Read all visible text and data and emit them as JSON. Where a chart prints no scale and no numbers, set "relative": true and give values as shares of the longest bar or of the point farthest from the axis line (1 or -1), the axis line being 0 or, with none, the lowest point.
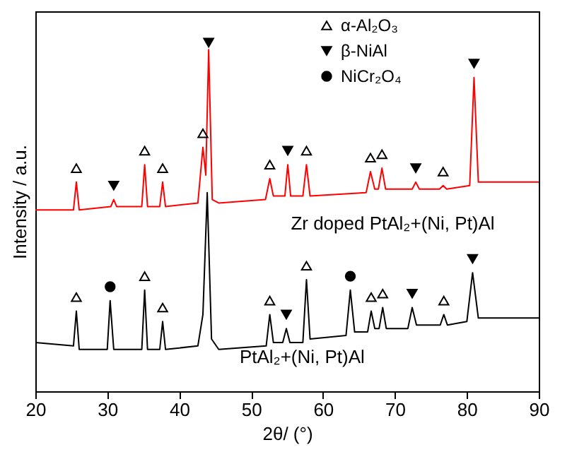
{
  "chart_data": {
    "type": "line",
    "relative": true,
    "xlabel": "2θ/ (°)",
    "ylabel": "Intensity / a.u.",
    "xlim": [
      20,
      90
    ],
    "xticks": [
      20,
      30,
      40,
      50,
      60,
      70,
      80,
      90
    ],
    "grid": false,
    "legend": "top right",
    "marker": "none",
    "line_style": "solid",
    "series": [
      {
        "color": "#ff0000",
        "x": [
          20,
          25.3,
          25.7,
          26.1,
          30.5,
          30.9,
          31.3,
          34.8,
          35.2,
          35.6,
          37.3,
          37.7,
          38.1,
          42.6,
          43.3,
          43.7,
          44.1,
          44.6,
          45.5,
          52.0,
          52.6,
          53.1,
          54.7,
          55.1,
          55.5,
          57.2,
          57.7,
          58.2,
          66.0,
          66.6,
          67.2,
          67.7,
          68.2,
          68.7,
          72.4,
          72.9,
          73.4,
          76.2,
          76.7,
          77.2,
          80.4,
          81.0,
          81.6,
          90
        ],
        "values": [
          0.52,
          0.52,
          0.6,
          0.52,
          0.53,
          0.55,
          0.53,
          0.53,
          0.65,
          0.53,
          0.53,
          0.6,
          0.53,
          0.54,
          0.7,
          0.62,
          0.98,
          0.55,
          0.54,
          0.55,
          0.61,
          0.56,
          0.56,
          0.65,
          0.56,
          0.56,
          0.65,
          0.56,
          0.57,
          0.63,
          0.58,
          0.58,
          0.64,
          0.58,
          0.58,
          0.6,
          0.58,
          0.58,
          0.59,
          0.58,
          0.59,
          0.9,
          0.6,
          0.6
        ]
      },
      {
        "color": "#000000",
        "x": [
          20,
          25.3,
          25.7,
          26.1,
          30.0,
          30.4,
          30.9,
          34.8,
          35.2,
          35.6,
          37.3,
          37.7,
          38.1,
          42.6,
          43.3,
          43.9,
          44.5,
          45.5,
          52.1,
          52.6,
          53.1,
          54.4,
          54.9,
          55.4,
          57.2,
          57.7,
          58.2,
          63.2,
          63.8,
          64.4,
          66.2,
          66.7,
          67.2,
          67.8,
          68.3,
          68.8,
          71.8,
          72.4,
          73.0,
          76.3,
          76.8,
          77.3,
          80.0,
          80.8,
          81.6,
          90
        ],
        "values": [
          0.14,
          0.13,
          0.23,
          0.12,
          0.12,
          0.26,
          0.12,
          0.12,
          0.29,
          0.12,
          0.12,
          0.2,
          0.12,
          0.13,
          0.22,
          0.57,
          0.15,
          0.12,
          0.13,
          0.22,
          0.14,
          0.14,
          0.18,
          0.14,
          0.14,
          0.32,
          0.15,
          0.16,
          0.29,
          0.17,
          0.17,
          0.23,
          0.18,
          0.18,
          0.24,
          0.18,
          0.18,
          0.24,
          0.19,
          0.19,
          0.22,
          0.19,
          0.2,
          0.34,
          0.21,
          0.21
        ]
      },
      {
        "type": "scatter",
        "name": "α-Al₂O₃",
        "color": "#ffffff",
        "marker": "triangle",
        "x": [
          25.7,
          35.2,
          37.7,
          43.3,
          52.6,
          57.7,
          66.6,
          68.2,
          76.7,
          25.7,
          35.2,
          37.7,
          52.6,
          57.7,
          66.7,
          68.3,
          76.8
        ],
        "values": [
          0.64,
          0.69,
          0.64,
          0.74,
          0.65,
          0.69,
          0.67,
          0.68,
          0.63,
          0.27,
          0.33,
          0.24,
          0.26,
          0.36,
          0.27,
          0.28,
          0.26
        ]
      },
      {
        "type": "scatter",
        "name": "β-NiAl",
        "color": "#000000",
        "marker": "triangle-down",
        "x": [
          30.9,
          44.1,
          55.1,
          72.9,
          81.0,
          54.9,
          72.4,
          80.8
        ],
        "values": [
          0.59,
          1.0,
          0.69,
          0.64,
          0.94,
          0.22,
          0.28,
          0.38
        ]
      },
      {
        "type": "scatter",
        "name": "NiCr₂O₄",
        "color": "#000000",
        "marker": "circle",
        "x": [
          30.4,
          63.8
        ],
        "values": [
          0.3,
          0.33
        ]
      }
    ],
    "annotations": [
      "Zr doped PtAl₂+(Ni, Pt)Al",
      "PtAl₂+(Ni, Pt)Al"
    ]
  }
}
